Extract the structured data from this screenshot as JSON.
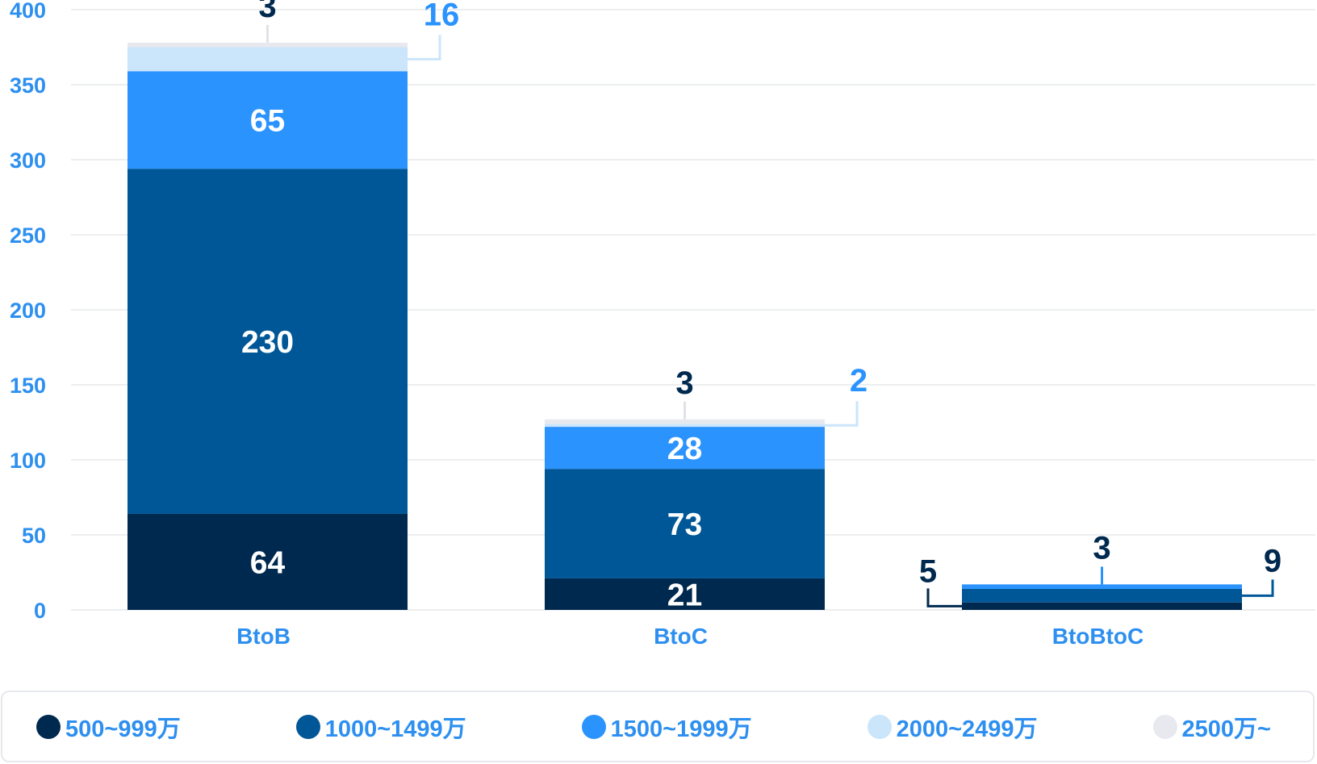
{
  "chart_data": {
    "type": "bar",
    "stacked": true,
    "categories": [
      "BtoB",
      "BtoC",
      "BtoBtoC"
    ],
    "ylim": [
      0,
      400
    ],
    "yticks": [
      "0",
      "50",
      "100",
      "150",
      "200",
      "250",
      "300",
      "350",
      "400"
    ],
    "grid": true,
    "legend_position": "bottom",
    "series": [
      {
        "name": "500~999万",
        "color": "#00294f",
        "values": [
          64,
          21,
          5
        ]
      },
      {
        "name": "1000~1499万",
        "color": "#005797",
        "values": [
          230,
          73,
          9
        ]
      },
      {
        "name": "1500~1999万",
        "color": "#2b93fd",
        "values": [
          65,
          28,
          3
        ]
      },
      {
        "name": "2000~2499万",
        "color": "#cbe5fb",
        "values": [
          16,
          2,
          0
        ]
      },
      {
        "name": "2500万~",
        "color": "#e7e9ee",
        "values": [
          3,
          3,
          0
        ]
      }
    ],
    "callouts": [
      {
        "category": "BtoB",
        "series": "2500万~",
        "label": "3",
        "color": "#00294f"
      },
      {
        "category": "BtoB",
        "series": "2000~2499万",
        "label": "16",
        "color": "#2b93fd"
      },
      {
        "category": "BtoC",
        "series": "2500万~",
        "label": "3",
        "color": "#00294f"
      },
      {
        "category": "BtoC",
        "series": "2000~2499万",
        "label": "2",
        "color": "#2b93fd"
      },
      {
        "category": "BtoBtoC",
        "series": "500~999万",
        "label": "5",
        "color": "#00294f"
      },
      {
        "category": "BtoBtoC",
        "series": "1500~1999万",
        "label": "3",
        "color": "#00294f"
      },
      {
        "category": "BtoBtoC",
        "series": "1000~1499万",
        "label": "9",
        "color": "#00294f"
      }
    ]
  }
}
